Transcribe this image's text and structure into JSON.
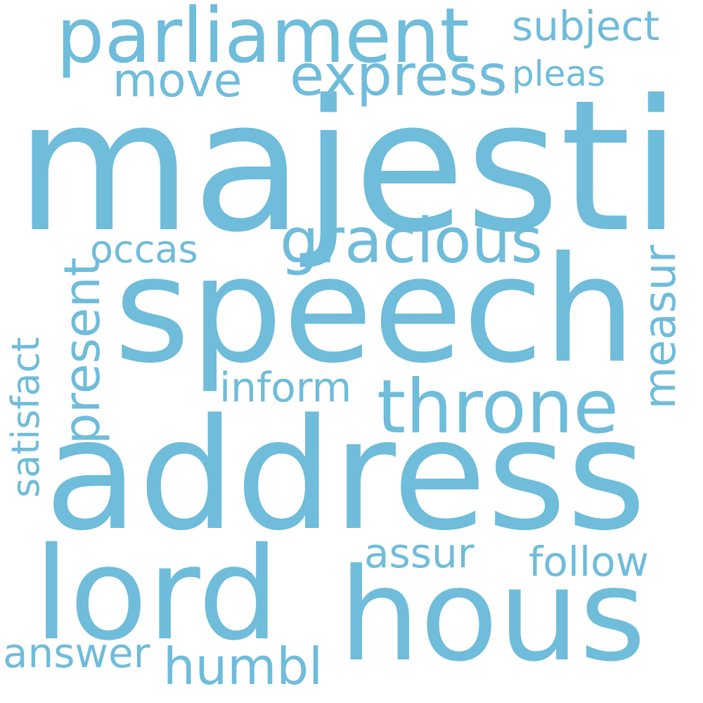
{
  "wordcloud": {
    "color": "#6fbcdb",
    "words": {
      "majesti": "majesti",
      "speech": "speech",
      "address": "address",
      "lord": "lord",
      "hous": "hous",
      "parliament": "parliament",
      "throne": "throne",
      "gracious": "gracious",
      "express": "express",
      "subject": "subject",
      "pleas": "pleas",
      "move": "move",
      "present": "present",
      "occas": "occas",
      "measur": "measur",
      "satisfact": "satisfact",
      "inform": "inform",
      "assur": "assur",
      "follow": "follow",
      "answer": "answer",
      "humbl": "humbl"
    }
  }
}
